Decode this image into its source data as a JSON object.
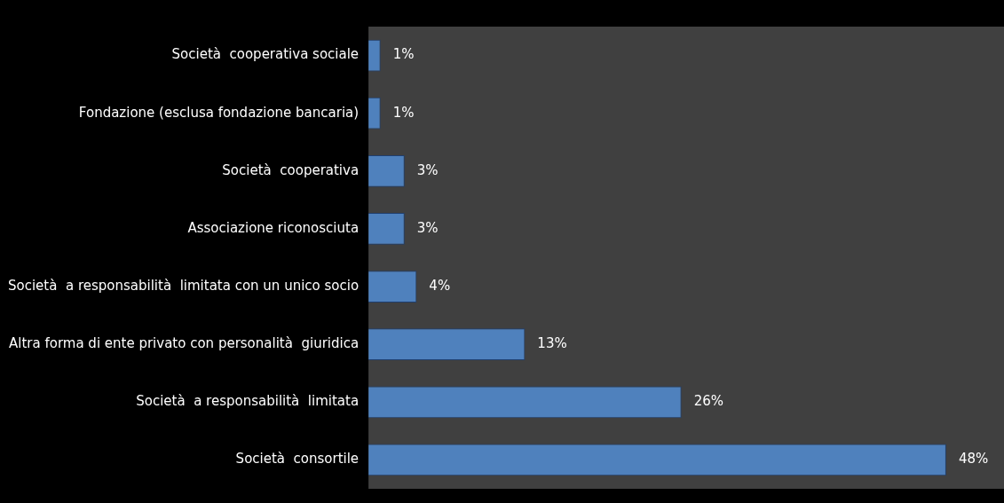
{
  "chart_data": {
    "type": "bar",
    "orientation": "horizontal",
    "categories": [
      "Società  cooperativa sociale",
      "Fondazione (esclusa fondazione bancaria)",
      "Società  cooperativa",
      "Associazione riconosciuta",
      "Società  a responsabilità  limitata con un unico socio",
      "Altra forma di ente privato con personalità  giuridica",
      "Società  a responsabilità  limitata",
      "Società  consortile"
    ],
    "values": [
      1,
      1,
      3,
      3,
      4,
      13,
      26,
      48
    ],
    "color": "#4f81bd",
    "data_labels": true,
    "value_labels": [
      "1%",
      "1%",
      "3%",
      "3%",
      "4%",
      "13%",
      "26%",
      "48%"
    ],
    "legend": false
  }
}
